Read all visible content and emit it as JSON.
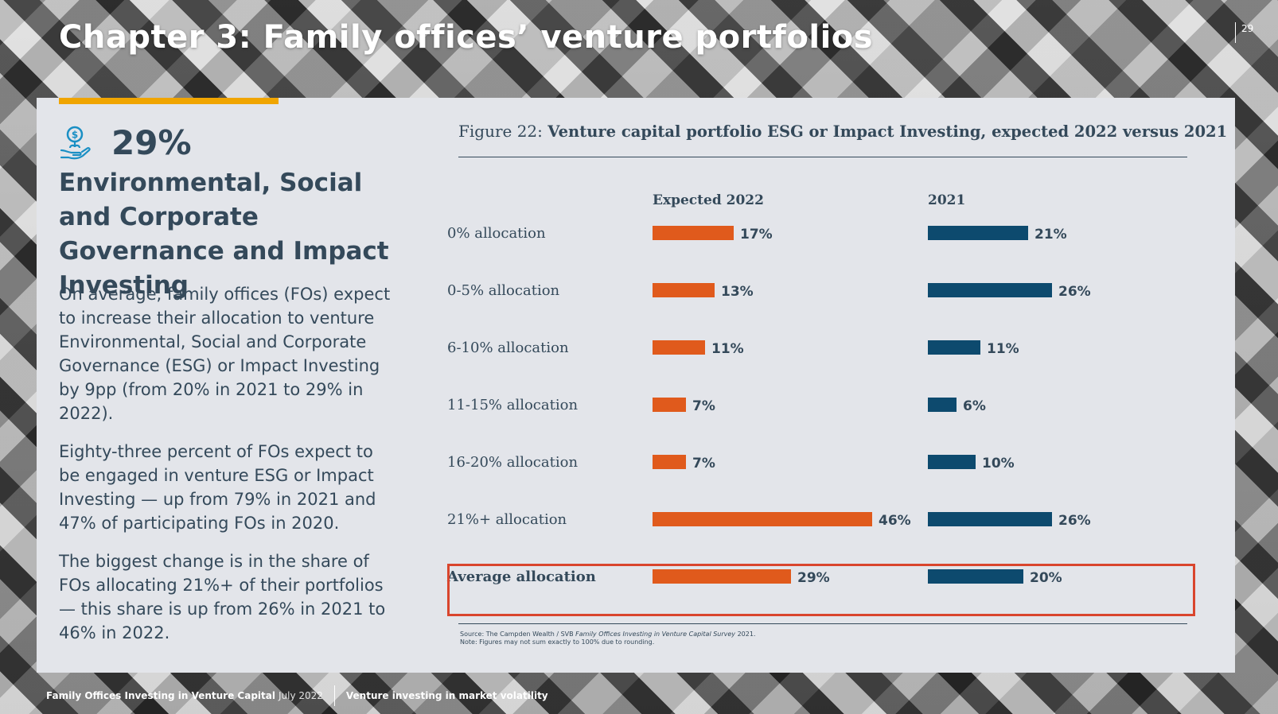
{
  "page": {
    "chapter_title": "Chapter 3: Family offices’ venture portfolios",
    "page_number": "29"
  },
  "sidebar": {
    "stat_value": "29%",
    "icon": "hand-coin-icon",
    "heading": "Environmental, Social and Corporate Governance and Impact Investing",
    "paragraphs": [
      "On average, family offices (FOs) expect to increase their allocation to venture Environmental, Social and Corporate Governance (ESG) or Impact Investing by 9pp (from 20% in 2021 to 29% in 2022).",
      "Eighty-three percent of FOs expect to be engaged in venture ESG or Impact Investing — up from 79% in 2021 and 47% of participating FOs in 2020.",
      "The biggest change is in the share of FOs allocating 21%+ of their portfolios — this share is up from 26% in 2021 to 46% in 2022."
    ]
  },
  "figure": {
    "label": "Figure 22: ",
    "title": "Venture capital portfolio ESG or Impact Investing, expected 2022 versus 2021",
    "source_prefix": "Source: The Campden Wealth / SVB ",
    "source_title": "Family Offices Investing in Venture Capital Survey",
    "source_suffix": " 2021.",
    "note": "Note: Figures may not sum exactly to 100% due to rounding."
  },
  "chart_data": {
    "type": "bar",
    "orientation": "horizontal",
    "categories": [
      "0% allocation",
      "0-5% allocation",
      "6-10% allocation",
      "11-15% allocation",
      "16-20% allocation",
      "21%+ allocation",
      "Average allocation"
    ],
    "series": [
      {
        "name": "Expected 2022",
        "values": [
          17,
          13,
          11,
          7,
          7,
          46,
          29
        ],
        "labels": [
          "17%",
          "13%",
          "11%",
          "7%",
          "7%",
          "46%",
          "29%"
        ],
        "color": "#e05a1c"
      },
      {
        "name": "2021",
        "values": [
          21,
          26,
          11,
          6,
          10,
          26,
          20
        ],
        "labels": [
          "21%",
          "26%",
          "11%",
          "6%",
          "10%",
          "26%",
          "20%"
        ],
        "color": "#0d4a6e"
      }
    ],
    "highlighted_category": "Average allocation",
    "highlight_color": "#d9452d",
    "xlim": [
      0,
      50
    ]
  },
  "footer": {
    "publication": "Family Offices Investing in Venture Capital",
    "date": "July 2022",
    "section": "Venture investing in market volatility"
  },
  "colors": {
    "accent": "#f0a500",
    "text": "#34495a",
    "card": "#e3e5ea"
  }
}
